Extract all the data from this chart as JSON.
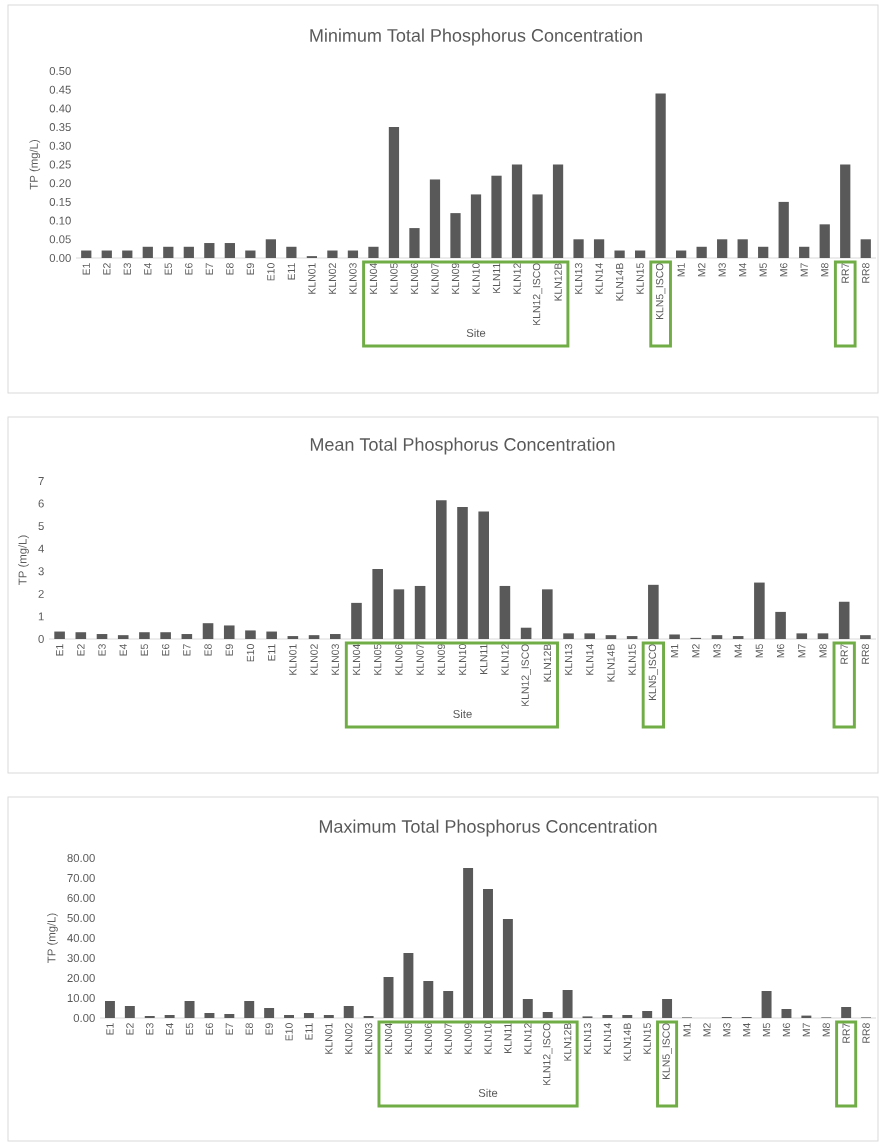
{
  "chart_data": [
    {
      "type": "bar",
      "title": "Minimum Total Phosphorus Concentration",
      "xlabel": "Site",
      "ylabel": "TP (mg/L)",
      "categories": [
        "E1",
        "E2",
        "E3",
        "E4",
        "E5",
        "E6",
        "E7",
        "E8",
        "E9",
        "E10",
        "E11",
        "KLN01",
        "KLN02",
        "KLN03",
        "KLN04",
        "KLN05",
        "KLN06",
        "KLN07",
        "KLN09",
        "KLN10",
        "KLN11",
        "KLN12",
        "KLN12_ISCO",
        "KLN12B",
        "KLN13",
        "KLN14",
        "KLN14B",
        "KLN15",
        "KLN5_ISCO",
        "M1",
        "M2",
        "M3",
        "M4",
        "M5",
        "M6",
        "M7",
        "M8",
        "RR7",
        "RR8"
      ],
      "values": [
        0.02,
        0.02,
        0.02,
        0.03,
        0.03,
        0.03,
        0.04,
        0.04,
        0.02,
        0.05,
        0.03,
        0.005,
        0.02,
        0.02,
        0.03,
        0.35,
        0.08,
        0.21,
        0.12,
        0.17,
        0.22,
        0.25,
        0.17,
        0.25,
        0.05,
        0.05,
        0.02,
        0.02,
        0.44,
        0.02,
        0.03,
        0.05,
        0.05,
        0.03,
        0.15,
        0.03,
        0.09,
        0.25,
        0.05
      ],
      "color": "#595959",
      "ylim": [
        0,
        0.5
      ],
      "yticks": [
        {
          "value": 0,
          "label": "0.00"
        },
        {
          "value": 0.05,
          "label": "0.05"
        },
        {
          "value": 0.1,
          "label": "0.10"
        },
        {
          "value": 0.15,
          "label": "0.15"
        },
        {
          "value": 0.2,
          "label": "0.20"
        },
        {
          "value": 0.25,
          "label": "0.25"
        },
        {
          "value": 0.3,
          "label": "0.30"
        },
        {
          "value": 0.35,
          "label": "0.35"
        },
        {
          "value": 0.4,
          "label": "0.40"
        },
        {
          "value": 0.45,
          "label": "0.45"
        },
        {
          "value": 0.5,
          "label": "0.50"
        }
      ]
    },
    {
      "type": "bar",
      "title": "Mean Total Phosphorus Concentration",
      "xlabel": "Site",
      "ylabel": "TP (mg/L)",
      "categories": [
        "E1",
        "E2",
        "E3",
        "E4",
        "E5",
        "E6",
        "E7",
        "E8",
        "E9",
        "E10",
        "E11",
        "KLN01",
        "KLN02",
        "KLN03",
        "KLN04",
        "KLN05",
        "KLN06",
        "KLN07",
        "KLN09",
        "KLN10",
        "KLN11",
        "KLN12",
        "KLN12_ISCO",
        "KLN12B",
        "KLN13",
        "KLN14",
        "KLN14B",
        "KLN15",
        "KLN5_ISCO",
        "M1",
        "M2",
        "M3",
        "M4",
        "M5",
        "M6",
        "M7",
        "M8",
        "RR7",
        "RR8"
      ],
      "values": [
        0.33,
        0.3,
        0.22,
        0.17,
        0.3,
        0.3,
        0.22,
        0.7,
        0.6,
        0.38,
        0.33,
        0.13,
        0.17,
        0.22,
        1.6,
        3.1,
        2.2,
        2.35,
        6.15,
        5.85,
        5.65,
        2.35,
        0.5,
        2.2,
        0.25,
        0.25,
        0.17,
        0.13,
        2.4,
        0.2,
        0.05,
        0.17,
        0.13,
        2.5,
        1.2,
        0.25,
        0.25,
        1.65,
        0.17
      ],
      "color": "#595959",
      "ylim": [
        0,
        7
      ],
      "yticks": [
        0,
        1,
        2,
        3,
        4,
        5,
        6,
        7
      ]
    },
    {
      "type": "bar",
      "title": "Maximum  Total Phosphorus Concentration",
      "xlabel": "Site",
      "ylabel": "TP (mg/L)",
      "categories": [
        "E1",
        "E2",
        "E3",
        "E4",
        "E5",
        "E6",
        "E7",
        "E8",
        "E9",
        "E10",
        "E11",
        "KLN01",
        "KLN02",
        "KLN03",
        "KLN04",
        "KLN05",
        "KLN06",
        "KLN07",
        "KLN09",
        "KLN10",
        "KLN11",
        "KLN12",
        "KLN12_ISCO",
        "KLN12B",
        "KLN13",
        "KLN14",
        "KLN14B",
        "KLN15",
        "KLN5_ISCO",
        "M1",
        "M2",
        "M3",
        "M4",
        "M5",
        "M6",
        "M7",
        "M8",
        "RR7",
        "RR8"
      ],
      "values": [
        8.5,
        6,
        1,
        1.5,
        8.5,
        2.5,
        2,
        8.5,
        5,
        1.5,
        2.5,
        1.5,
        6,
        1,
        20.5,
        32.5,
        18.5,
        13.5,
        75,
        64.5,
        49.5,
        9.5,
        3,
        14,
        0.8,
        1.5,
        1.5,
        3.5,
        9.5,
        0.3,
        0,
        0.5,
        0.5,
        13.5,
        4.5,
        1.2,
        0.3,
        5.5,
        0.3
      ],
      "color": "#595959",
      "ylim": [
        0,
        80
      ],
      "yticks": [
        {
          "value": 0,
          "label": "0.00"
        },
        {
          "value": 10,
          "label": "10.00"
        },
        {
          "value": 20,
          "label": "20.00"
        },
        {
          "value": 30,
          "label": "30.00"
        },
        {
          "value": 40,
          "label": "40.00"
        },
        {
          "value": 50,
          "label": "50.00"
        },
        {
          "value": 60,
          "label": "60.00"
        },
        {
          "value": 70,
          "label": "70.00"
        },
        {
          "value": 80,
          "label": "80.00"
        }
      ]
    }
  ]
}
